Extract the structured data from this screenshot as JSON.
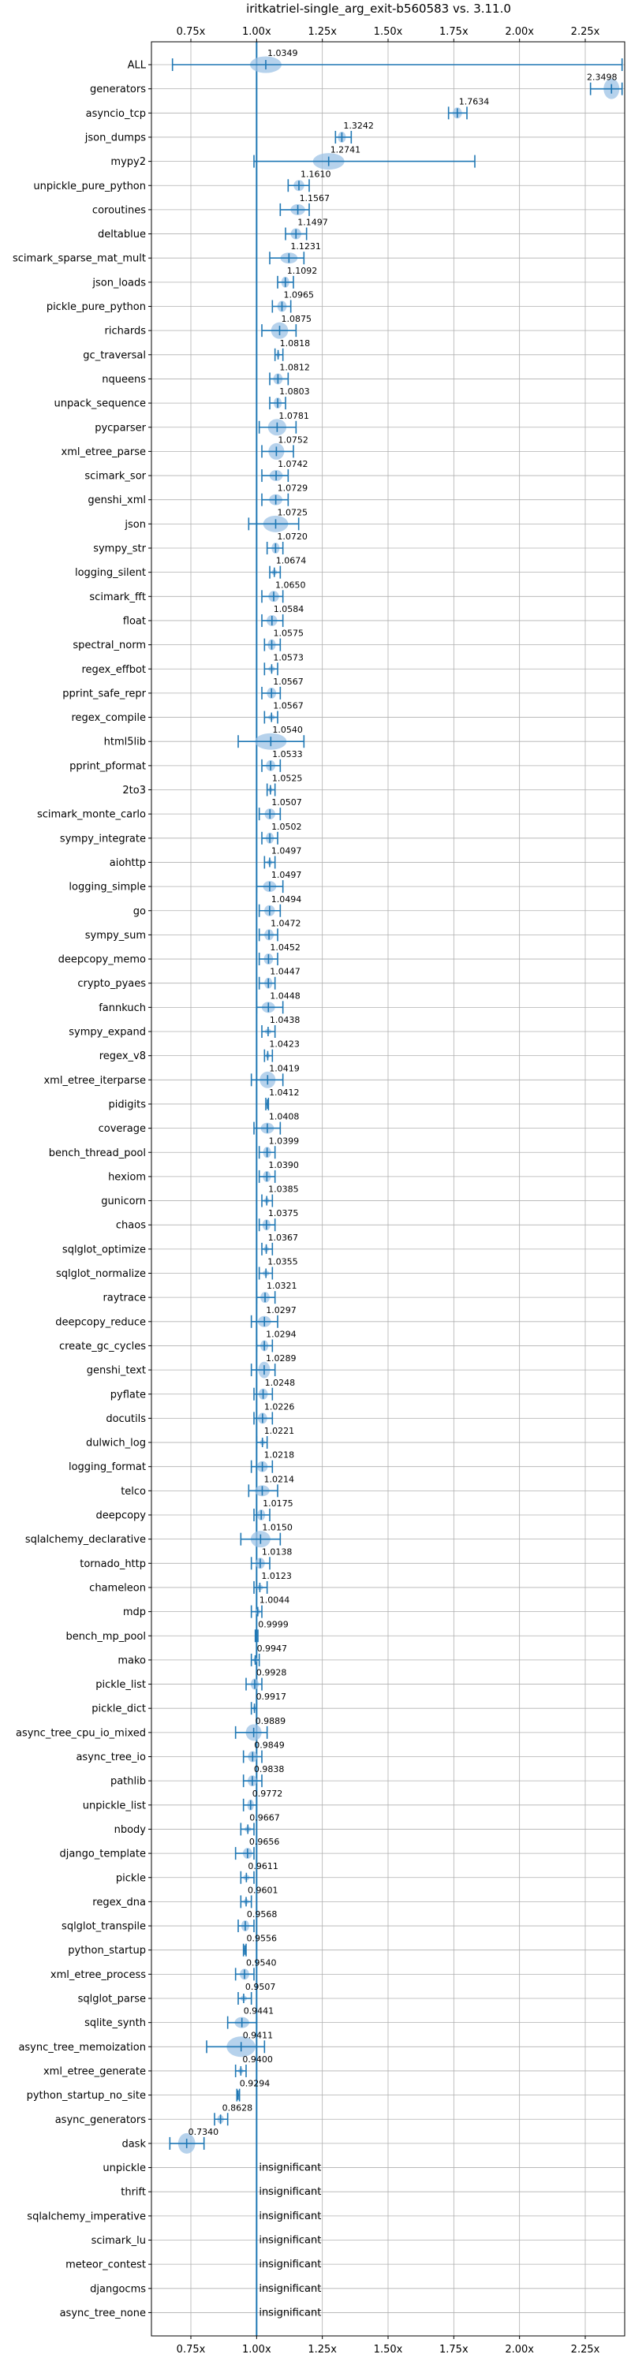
{
  "chart_data": {
    "type": "violin",
    "title": "iritkatriel-single_arg_exit-b560583 vs. 3.11.0",
    "xlim": [
      0.6,
      2.4
    ],
    "xticks": [
      0.75,
      1.0,
      1.25,
      1.5,
      1.75,
      2.0,
      2.25
    ],
    "xtick_labels": [
      "0.75x",
      "1.00x",
      "1.25x",
      "1.50x",
      "1.75x",
      "2.00x",
      "2.25x"
    ],
    "reference_line": 1.0,
    "grid": true,
    "colors": {
      "accent": "#1f77b4",
      "violin": "#9ec3e6",
      "grid": "#b0b0b0"
    },
    "insignificant_label": "insignificant",
    "benchmarks": [
      {
        "name": "ALL",
        "value": 1.0349,
        "label": "1.0349",
        "min": 0.68,
        "max": 2.39,
        "spread": 0.03
      },
      {
        "name": "generators",
        "value": 2.3498,
        "label": "2.3498",
        "min": 2.27,
        "max": 2.39,
        "spread": 0.04
      },
      {
        "name": "asyncio_tcp",
        "value": 1.7634,
        "label": "1.7634",
        "min": 1.73,
        "max": 1.8,
        "spread": 0.02
      },
      {
        "name": "json_dumps",
        "value": 1.3242,
        "label": "1.3242",
        "min": 1.3,
        "max": 1.36,
        "spread": 0.02
      },
      {
        "name": "mypy2",
        "value": 1.2741,
        "label": "1.2741",
        "min": 0.99,
        "max": 1.83,
        "spread": 0.03
      },
      {
        "name": "unpickle_pure_python",
        "value": 1.161,
        "label": "1.1610",
        "min": 1.12,
        "max": 1.2,
        "spread": 0.02
      },
      {
        "name": "coroutines",
        "value": 1.1567,
        "label": "1.1567",
        "min": 1.09,
        "max": 1.2,
        "spread": 0.02
      },
      {
        "name": "deltablue",
        "value": 1.1497,
        "label": "1.1497",
        "min": 1.11,
        "max": 1.19,
        "spread": 0.02
      },
      {
        "name": "scimark_sparse_mat_mult",
        "value": 1.1231,
        "label": "1.1231",
        "min": 1.05,
        "max": 1.18,
        "spread": 0.02
      },
      {
        "name": "json_loads",
        "value": 1.1092,
        "label": "1.1092",
        "min": 1.08,
        "max": 1.14,
        "spread": 0.02
      },
      {
        "name": "pickle_pure_python",
        "value": 1.0965,
        "label": "1.0965",
        "min": 1.06,
        "max": 1.13,
        "spread": 0.02
      },
      {
        "name": "richards",
        "value": 1.0875,
        "label": "1.0875",
        "min": 1.02,
        "max": 1.15,
        "spread": 0.03
      },
      {
        "name": "gc_traversal",
        "value": 1.0818,
        "label": "1.0818",
        "min": 1.07,
        "max": 1.1,
        "spread": 0.01
      },
      {
        "name": "nqueens",
        "value": 1.0812,
        "label": "1.0812",
        "min": 1.05,
        "max": 1.12,
        "spread": 0.02
      },
      {
        "name": "unpack_sequence",
        "value": 1.0803,
        "label": "1.0803",
        "min": 1.05,
        "max": 1.11,
        "spread": 0.02
      },
      {
        "name": "pycparser",
        "value": 1.0781,
        "label": "1.0781",
        "min": 1.01,
        "max": 1.15,
        "spread": 0.03
      },
      {
        "name": "xml_etree_parse",
        "value": 1.0752,
        "label": "1.0752",
        "min": 1.02,
        "max": 1.14,
        "spread": 0.03
      },
      {
        "name": "scimark_sor",
        "value": 1.0742,
        "label": "1.0742",
        "min": 1.02,
        "max": 1.12,
        "spread": 0.02
      },
      {
        "name": "genshi_xml",
        "value": 1.0729,
        "label": "1.0729",
        "min": 1.02,
        "max": 1.12,
        "spread": 0.02
      },
      {
        "name": "json",
        "value": 1.0725,
        "label": "1.0725",
        "min": 0.97,
        "max": 1.16,
        "spread": 0.03
      },
      {
        "name": "sympy_str",
        "value": 1.072,
        "label": "1.0720",
        "min": 1.04,
        "max": 1.1,
        "spread": 0.02
      },
      {
        "name": "logging_silent",
        "value": 1.0674,
        "label": "1.0674",
        "min": 1.05,
        "max": 1.09,
        "spread": 0.01
      },
      {
        "name": "scimark_fft",
        "value": 1.065,
        "label": "1.0650",
        "min": 1.02,
        "max": 1.1,
        "spread": 0.02
      },
      {
        "name": "float",
        "value": 1.0584,
        "label": "1.0584",
        "min": 1.02,
        "max": 1.1,
        "spread": 0.02
      },
      {
        "name": "spectral_norm",
        "value": 1.0575,
        "label": "1.0575",
        "min": 1.03,
        "max": 1.09,
        "spread": 0.02
      },
      {
        "name": "regex_effbot",
        "value": 1.0573,
        "label": "1.0573",
        "min": 1.03,
        "max": 1.08,
        "spread": 0.01
      },
      {
        "name": "pprint_safe_repr",
        "value": 1.0567,
        "label": "1.0567",
        "min": 1.02,
        "max": 1.09,
        "spread": 0.02
      },
      {
        "name": "regex_compile",
        "value": 1.0567,
        "label": "1.0567",
        "min": 1.03,
        "max": 1.08,
        "spread": 0.01
      },
      {
        "name": "html5lib",
        "value": 1.054,
        "label": "1.0540",
        "min": 0.93,
        "max": 1.18,
        "spread": 0.03
      },
      {
        "name": "pprint_pformat",
        "value": 1.0533,
        "label": "1.0533",
        "min": 1.02,
        "max": 1.09,
        "spread": 0.02
      },
      {
        "name": "2to3",
        "value": 1.0525,
        "label": "1.0525",
        "min": 1.04,
        "max": 1.07,
        "spread": 0.01
      },
      {
        "name": "scimark_monte_carlo",
        "value": 1.0507,
        "label": "1.0507",
        "min": 1.01,
        "max": 1.09,
        "spread": 0.02
      },
      {
        "name": "sympy_integrate",
        "value": 1.0502,
        "label": "1.0502",
        "min": 1.02,
        "max": 1.08,
        "spread": 0.02
      },
      {
        "name": "aiohttp",
        "value": 1.0497,
        "label": "1.0497",
        "min": 1.03,
        "max": 1.07,
        "spread": 0.01
      },
      {
        "name": "logging_simple",
        "value": 1.0497,
        "label": "1.0497",
        "min": 1.0,
        "max": 1.1,
        "spread": 0.02
      },
      {
        "name": "go",
        "value": 1.0494,
        "label": "1.0494",
        "min": 1.01,
        "max": 1.09,
        "spread": 0.02
      },
      {
        "name": "sympy_sum",
        "value": 1.0472,
        "label": "1.0472",
        "min": 1.01,
        "max": 1.08,
        "spread": 0.02
      },
      {
        "name": "deepcopy_memo",
        "value": 1.0452,
        "label": "1.0452",
        "min": 1.01,
        "max": 1.08,
        "spread": 0.02
      },
      {
        "name": "crypto_pyaes",
        "value": 1.0447,
        "label": "1.0447",
        "min": 1.01,
        "max": 1.07,
        "spread": 0.02
      },
      {
        "name": "fannkuch",
        "value": 1.0448,
        "label": "1.0448",
        "min": 1.0,
        "max": 1.1,
        "spread": 0.02
      },
      {
        "name": "sympy_expand",
        "value": 1.0438,
        "label": "1.0438",
        "min": 1.02,
        "max": 1.07,
        "spread": 0.01
      },
      {
        "name": "regex_v8",
        "value": 1.0423,
        "label": "1.0423",
        "min": 1.03,
        "max": 1.06,
        "spread": 0.01
      },
      {
        "name": "xml_etree_iterparse",
        "value": 1.0419,
        "label": "1.0419",
        "min": 0.98,
        "max": 1.1,
        "spread": 0.03
      },
      {
        "name": "pidigits",
        "value": 1.0412,
        "label": "1.0412",
        "min": 1.035,
        "max": 1.045,
        "spread": 0.005
      },
      {
        "name": "coverage",
        "value": 1.0408,
        "label": "1.0408",
        "min": 0.99,
        "max": 1.09,
        "spread": 0.02
      },
      {
        "name": "bench_thread_pool",
        "value": 1.0399,
        "label": "1.0399",
        "min": 1.01,
        "max": 1.07,
        "spread": 0.02
      },
      {
        "name": "hexiom",
        "value": 1.039,
        "label": "1.0390",
        "min": 1.01,
        "max": 1.07,
        "spread": 0.02
      },
      {
        "name": "gunicorn",
        "value": 1.0385,
        "label": "1.0385",
        "min": 1.02,
        "max": 1.06,
        "spread": 0.01
      },
      {
        "name": "chaos",
        "value": 1.0375,
        "label": "1.0375",
        "min": 1.01,
        "max": 1.07,
        "spread": 0.02
      },
      {
        "name": "sqlglot_optimize",
        "value": 1.0367,
        "label": "1.0367",
        "min": 1.02,
        "max": 1.06,
        "spread": 0.01
      },
      {
        "name": "sqlglot_normalize",
        "value": 1.0355,
        "label": "1.0355",
        "min": 1.01,
        "max": 1.06,
        "spread": 0.01
      },
      {
        "name": "raytrace",
        "value": 1.0321,
        "label": "1.0321",
        "min": 1.0,
        "max": 1.07,
        "spread": 0.02
      },
      {
        "name": "deepcopy_reduce",
        "value": 1.0297,
        "label": "1.0297",
        "min": 0.98,
        "max": 1.08,
        "spread": 0.02
      },
      {
        "name": "create_gc_cycles",
        "value": 1.0294,
        "label": "1.0294",
        "min": 1.0,
        "max": 1.06,
        "spread": 0.02
      },
      {
        "name": "genshi_text",
        "value": 1.0289,
        "label": "1.0289",
        "min": 0.98,
        "max": 1.07,
        "spread": 0.03
      },
      {
        "name": "pyflate",
        "value": 1.0248,
        "label": "1.0248",
        "min": 0.99,
        "max": 1.06,
        "spread": 0.02
      },
      {
        "name": "docutils",
        "value": 1.0226,
        "label": "1.0226",
        "min": 0.99,
        "max": 1.06,
        "spread": 0.02
      },
      {
        "name": "dulwich_log",
        "value": 1.0221,
        "label": "1.0221",
        "min": 1.0,
        "max": 1.04,
        "spread": 0.01
      },
      {
        "name": "logging_format",
        "value": 1.0218,
        "label": "1.0218",
        "min": 0.98,
        "max": 1.06,
        "spread": 0.02
      },
      {
        "name": "telco",
        "value": 1.0214,
        "label": "1.0214",
        "min": 0.97,
        "max": 1.08,
        "spread": 0.02
      },
      {
        "name": "deepcopy",
        "value": 1.0175,
        "label": "1.0175",
        "min": 0.99,
        "max": 1.05,
        "spread": 0.02
      },
      {
        "name": "sqlalchemy_declarative",
        "value": 1.015,
        "label": "1.0150",
        "min": 0.94,
        "max": 1.09,
        "spread": 0.03
      },
      {
        "name": "tornado_http",
        "value": 1.0138,
        "label": "1.0138",
        "min": 0.98,
        "max": 1.05,
        "spread": 0.02
      },
      {
        "name": "chameleon",
        "value": 1.0123,
        "label": "1.0123",
        "min": 0.99,
        "max": 1.04,
        "spread": 0.01
      },
      {
        "name": "mdp",
        "value": 1.0044,
        "label": "1.0044",
        "min": 0.98,
        "max": 1.02,
        "spread": 0.01
      },
      {
        "name": "bench_mp_pool",
        "value": 0.9999,
        "label": "0.9999",
        "min": 0.995,
        "max": 1.005,
        "spread": 0.004
      },
      {
        "name": "mako",
        "value": 0.9947,
        "label": "0.9947",
        "min": 0.98,
        "max": 1.01,
        "spread": 0.01
      },
      {
        "name": "pickle_list",
        "value": 0.9928,
        "label": "0.9928",
        "min": 0.96,
        "max": 1.02,
        "spread": 0.02
      },
      {
        "name": "pickle_dict",
        "value": 0.9917,
        "label": "0.9917",
        "min": 0.98,
        "max": 1.0,
        "spread": 0.01
      },
      {
        "name": "async_tree_cpu_io_mixed",
        "value": 0.9889,
        "label": "0.9889",
        "min": 0.92,
        "max": 1.04,
        "spread": 0.03
      },
      {
        "name": "async_tree_io",
        "value": 0.9849,
        "label": "0.9849",
        "min": 0.95,
        "max": 1.02,
        "spread": 0.02
      },
      {
        "name": "pathlib",
        "value": 0.9838,
        "label": "0.9838",
        "min": 0.95,
        "max": 1.02,
        "spread": 0.02
      },
      {
        "name": "unpickle_list",
        "value": 0.9772,
        "label": "0.9772",
        "min": 0.95,
        "max": 1.0,
        "spread": 0.02
      },
      {
        "name": "nbody",
        "value": 0.9667,
        "label": "0.9667",
        "min": 0.94,
        "max": 0.99,
        "spread": 0.01
      },
      {
        "name": "django_template",
        "value": 0.9656,
        "label": "0.9656",
        "min": 0.92,
        "max": 0.99,
        "spread": 0.02
      },
      {
        "name": "pickle",
        "value": 0.9611,
        "label": "0.9611",
        "min": 0.94,
        "max": 0.99,
        "spread": 0.01
      },
      {
        "name": "regex_dna",
        "value": 0.9601,
        "label": "0.9601",
        "min": 0.94,
        "max": 0.98,
        "spread": 0.01
      },
      {
        "name": "sqlglot_transpile",
        "value": 0.9568,
        "label": "0.9568",
        "min": 0.93,
        "max": 0.99,
        "spread": 0.02
      },
      {
        "name": "python_startup",
        "value": 0.9556,
        "label": "0.9556",
        "min": 0.95,
        "max": 0.96,
        "spread": 0.005
      },
      {
        "name": "xml_etree_process",
        "value": 0.954,
        "label": "0.9540",
        "min": 0.92,
        "max": 0.99,
        "spread": 0.02
      },
      {
        "name": "sqlglot_parse",
        "value": 0.9507,
        "label": "0.9507",
        "min": 0.93,
        "max": 0.98,
        "spread": 0.01
      },
      {
        "name": "sqlite_synth",
        "value": 0.9441,
        "label": "0.9441",
        "min": 0.89,
        "max": 1.0,
        "spread": 0.02
      },
      {
        "name": "async_tree_memoization",
        "value": 0.9411,
        "label": "0.9411",
        "min": 0.81,
        "max": 1.03,
        "spread": 0.04
      },
      {
        "name": "xml_etree_generate",
        "value": 0.94,
        "label": "0.9400",
        "min": 0.92,
        "max": 0.96,
        "spread": 0.01
      },
      {
        "name": "python_startup_no_site",
        "value": 0.9294,
        "label": "0.9294",
        "min": 0.925,
        "max": 0.935,
        "spread": 0.004
      },
      {
        "name": "async_generators",
        "value": 0.8628,
        "label": "0.8628",
        "min": 0.84,
        "max": 0.89,
        "spread": 0.015
      },
      {
        "name": "dask",
        "value": 0.734,
        "label": "0.7340",
        "min": 0.67,
        "max": 0.8,
        "spread": 0.04
      },
      {
        "name": "unpickle",
        "value": null,
        "label": "insignificant"
      },
      {
        "name": "thrift",
        "value": null,
        "label": "insignificant"
      },
      {
        "name": "sqlalchemy_imperative",
        "value": null,
        "label": "insignificant"
      },
      {
        "name": "scimark_lu",
        "value": null,
        "label": "insignificant"
      },
      {
        "name": "meteor_contest",
        "value": null,
        "label": "insignificant"
      },
      {
        "name": "djangocms",
        "value": null,
        "label": "insignificant"
      },
      {
        "name": "async_tree_none",
        "value": null,
        "label": "insignificant"
      }
    ]
  }
}
